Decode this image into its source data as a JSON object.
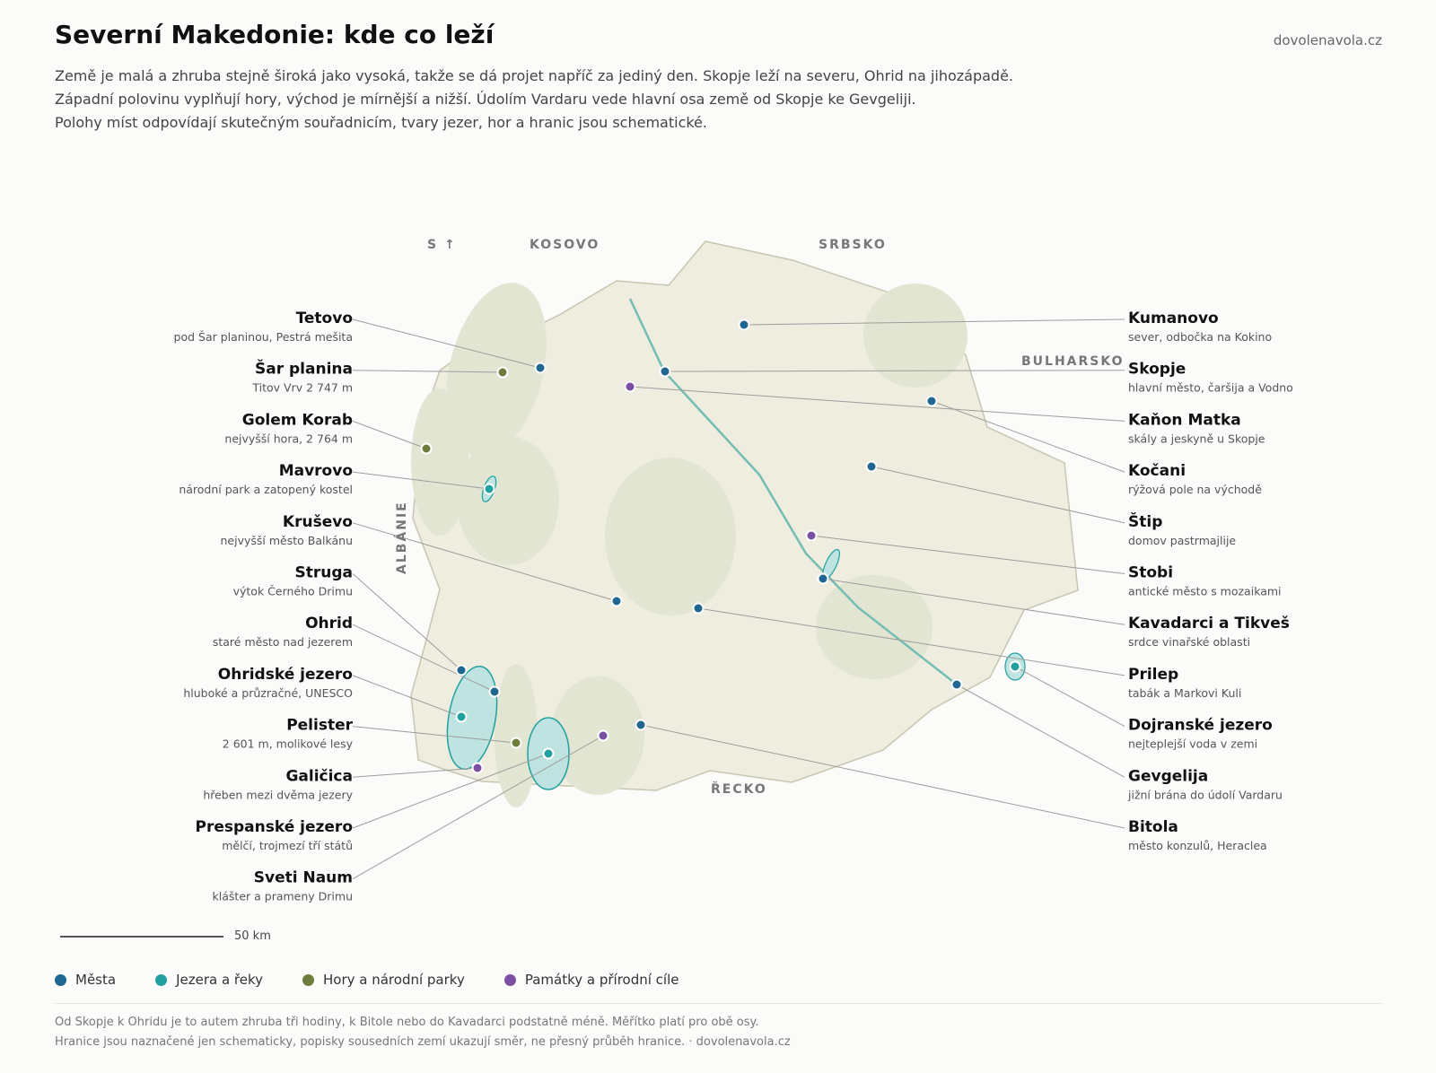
{
  "title": "Severní Makedonie: kde co leží",
  "site": "dovolenavola.cz",
  "intro": [
    "Země je malá a zhruba stejně široká jako vysoká, takže se dá projet napříč za jediný den. Skopje leží na severu, Ohrid na jihozápadě.",
    "Západní polovinu vyplňují hory, východ je mírnější a nižší. Údolím Vardaru vede hlavní osa země od Skopje ke Gevgeliji.",
    "Polohy míst odpovídají skutečným souřadnicím, tvary jezer, hor a hranic jsou schematické."
  ],
  "colors": {
    "city": "#1f6690",
    "water": "#21a0a0",
    "mountain": "#6e7d3c",
    "sight": "#7b4fa3",
    "land": "#eeede0",
    "hills": "#e2e5d2",
    "border": "#c7c6b0",
    "river": "#74bdb2",
    "leader": "#9d9d9d"
  },
  "map": {
    "north": "S ↑",
    "neighbours": [
      "KOSOVO",
      "SRBSKO",
      "BULHARSKO",
      "ALBÁNIE",
      "ŘECKO"
    ]
  },
  "places": [
    {
      "name": "Tetovo",
      "desc": "pod Šar planinou, Pestrá mešita",
      "cat": "city"
    },
    {
      "name": "Šar planina",
      "desc": "Titov Vrv 2 747 m",
      "cat": "mountain"
    },
    {
      "name": "Golem Korab",
      "desc": "nejvyšší hora, 2 764 m",
      "cat": "mountain"
    },
    {
      "name": "Mavrovo",
      "desc": "národní park a zatopený kostel",
      "cat": "water"
    },
    {
      "name": "Kruševo",
      "desc": "nejvyšší město Balkánu",
      "cat": "city"
    },
    {
      "name": "Struga",
      "desc": "výtok Černého Drimu",
      "cat": "city"
    },
    {
      "name": "Ohrid",
      "desc": "staré město nad jezerem",
      "cat": "city"
    },
    {
      "name": "Ohridské jezero",
      "desc": "hluboké a průzračné, UNESCO",
      "cat": "water"
    },
    {
      "name": "Pelister",
      "desc": "2 601 m, molikové lesy",
      "cat": "mountain"
    },
    {
      "name": "Galičica",
      "desc": "hřeben mezi dvěma jezery",
      "cat": "sight"
    },
    {
      "name": "Prespanské jezero",
      "desc": "mělčí, trojmezí tří států",
      "cat": "water"
    },
    {
      "name": "Sveti Naum",
      "desc": "klášter a prameny Drimu",
      "cat": "sight"
    },
    {
      "name": "Kumanovo",
      "desc": "sever, odbočka na Kokino",
      "cat": "city"
    },
    {
      "name": "Skopje",
      "desc": "hlavní město, čaršija a Vodno",
      "cat": "city"
    },
    {
      "name": "Kaňon Matka",
      "desc": "skály a jeskyně u Skopje",
      "cat": "sight"
    },
    {
      "name": "Kočani",
      "desc": "rýžová pole na východě",
      "cat": "city"
    },
    {
      "name": "Štip",
      "desc": "domov pastrmajlije",
      "cat": "city"
    },
    {
      "name": "Stobi",
      "desc": "antické město s mozaikami",
      "cat": "sight"
    },
    {
      "name": "Kavadarci a Tikveš",
      "desc": "srdce vinařské oblasti",
      "cat": "city"
    },
    {
      "name": "Prilep",
      "desc": "tabák a Markovi Kuli",
      "cat": "city"
    },
    {
      "name": "Dojranské jezero",
      "desc": "nejteplejší voda v zemi",
      "cat": "water"
    },
    {
      "name": "Gevgelija",
      "desc": "jižní brána do údolí Vardaru",
      "cat": "city"
    },
    {
      "name": "Bitola",
      "desc": "město konzulů, Heraclea",
      "cat": "city"
    }
  ],
  "scale": {
    "label": "50 km"
  },
  "legend": [
    {
      "label": "Města",
      "cat": "city"
    },
    {
      "label": "Jezera a řeky",
      "cat": "water"
    },
    {
      "label": "Hory a národní parky",
      "cat": "mountain"
    },
    {
      "label": "Památky a přírodní cíle",
      "cat": "sight"
    }
  ],
  "footnote": [
    "Od Skopje k Ohridu je to autem zhruba tři hodiny, k Bitole nebo do Kavadarci podstatně méně. Měřítko platí pro obě osy.",
    "Hranice jsou naznačené jen schematicky, popisky sousedních zemí ukazují směr, ne přesný průběh hranice. · dovolenavola.cz"
  ]
}
